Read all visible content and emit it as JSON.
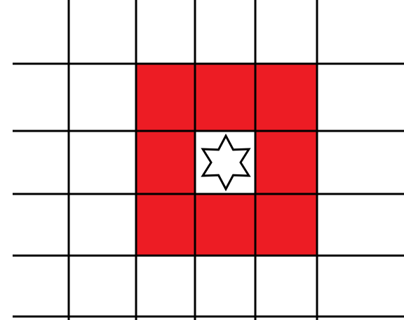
{
  "grid": {
    "columns": 6,
    "rows": 5,
    "highlight_color": "#ed1c24",
    "line_color": "#000000",
    "background_color": "#ffffff",
    "highlighted_cells": [
      [
        1,
        2
      ],
      [
        1,
        3
      ],
      [
        1,
        4
      ],
      [
        2,
        2
      ],
      [
        2,
        4
      ],
      [
        3,
        2
      ],
      [
        3,
        3
      ],
      [
        3,
        4
      ]
    ],
    "center_cell": [
      2,
      3
    ],
    "center_marker": "six-pointed-star-icon"
  }
}
